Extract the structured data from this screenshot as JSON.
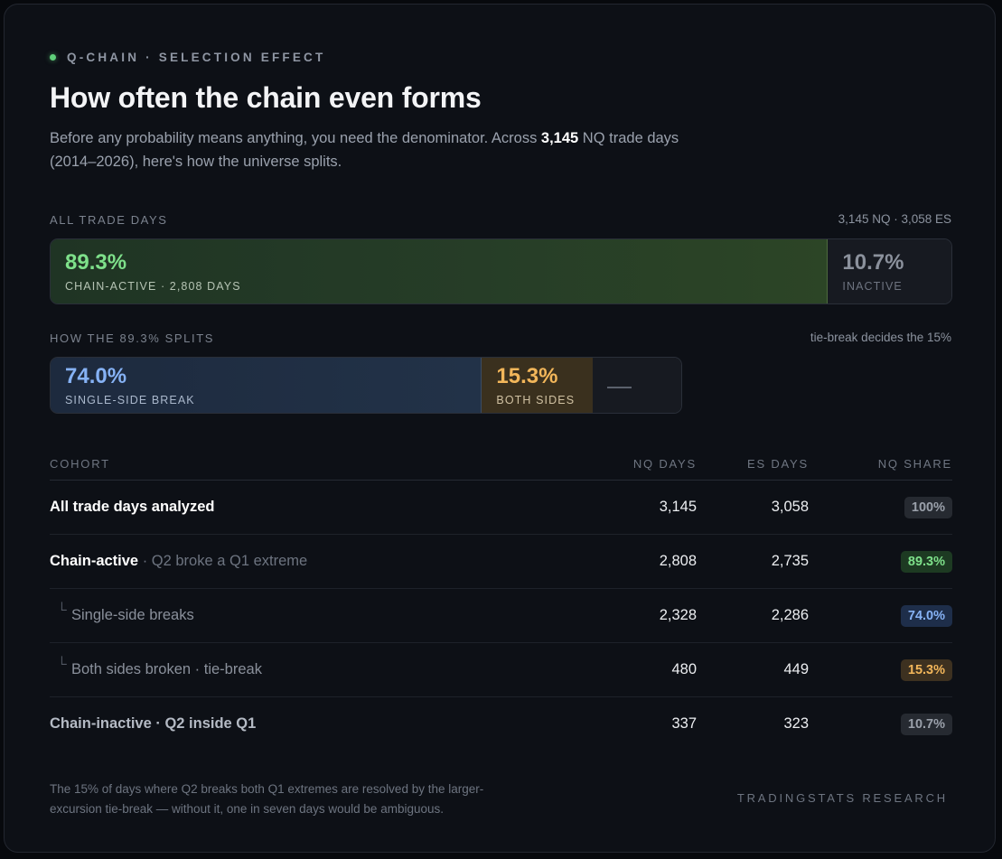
{
  "header": {
    "eyebrow": "Q-CHAIN · SELECTION EFFECT",
    "title": "How often the chain even forms",
    "subtitle_pre": "Before any probability means anything, you need the denominator. Across ",
    "subtitle_highlight": "3,145",
    "subtitle_post": " NQ trade days (2014–2026), here's how the universe splits.",
    "accent_color": "#5fd07a"
  },
  "all_days": {
    "label": "ALL TRADE DAYS",
    "note": "3,145 NQ · 3,058 ES",
    "segments": [
      {
        "pct": "89.3%",
        "label": "CHAIN-ACTIVE · 2,808 DAYS",
        "share": 89.3,
        "color": "#7ee08a"
      },
      {
        "pct": "10.7%",
        "label": "INACTIVE",
        "share": 10.7,
        "color": "#8b919c"
      }
    ]
  },
  "splits": {
    "label": "HOW THE 89.3% SPLITS",
    "note": "tie-break decides the 15%",
    "segments": [
      {
        "pct": "74.0%",
        "label": "SINGLE-SIDE BREAK",
        "share": 74.0,
        "color": "#86b2f5"
      },
      {
        "pct": "15.3%",
        "label": "BOTH SIDES",
        "share": 15.3,
        "color": "#f2b65a"
      },
      {
        "pct": "",
        "label": "",
        "share": 10.7,
        "color": "#5b616c"
      }
    ]
  },
  "table": {
    "headers": {
      "cohort": "COHORT",
      "nq": "NQ DAYS",
      "es": "ES DAYS",
      "share": "NQ SHARE"
    },
    "rows": [
      {
        "name": "All trade days analyzed",
        "detail": "",
        "nq": "3,145",
        "es": "3,058",
        "share": "100%"
      },
      {
        "name": "Chain-active",
        "detail": " · Q2 broke a Q1 extreme",
        "nq": "2,808",
        "es": "2,735",
        "share": "89.3%"
      },
      {
        "tree": "└",
        "name": "Single-side breaks",
        "detail": "",
        "nq": "2,328",
        "es": "2,286",
        "share": "74.0%"
      },
      {
        "tree": "└",
        "name": "Both sides broken · tie-break",
        "detail": "",
        "nq": "480",
        "es": "449",
        "share": "15.3%"
      },
      {
        "name": "Chain-inactive · Q2 inside Q1",
        "detail": "",
        "nq": "337",
        "es": "323",
        "share": "10.7%"
      }
    ]
  },
  "footer": {
    "note": "The 15% of days where Q2 breaks both Q1 extremes are resolved by the larger-excursion tie-break — without it, one in seven days would be ambiguous.",
    "brand": "TRADINGSTATS RESEARCH"
  }
}
